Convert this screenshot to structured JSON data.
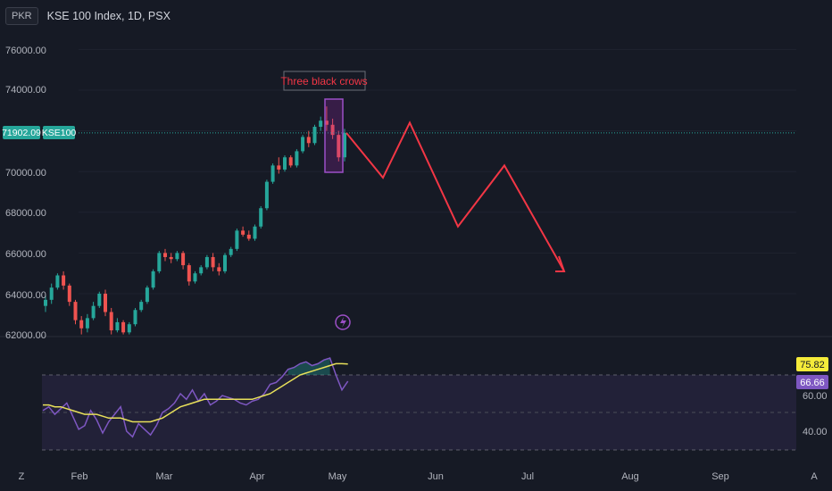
{
  "header": {
    "currency": "PKR",
    "title": "KSE 100 Index, 1D, PSX"
  },
  "price_axis": {
    "ticks": [
      "76000.00",
      "74000.00",
      "70000.00",
      "68000.00",
      "66000.00",
      "64000.00",
      "62000.00"
    ]
  },
  "price_tags": {
    "last_price": "71902.09",
    "symbol": "KSE100"
  },
  "annotation": {
    "text": "Three black crows"
  },
  "rsi_axis": {
    "ticks": [
      "60.00",
      "40.00"
    ],
    "ma_badge": "75.82",
    "rsi_badge": "66.66"
  },
  "time_axis": {
    "labels": [
      "Feb",
      "Mar",
      "Apr",
      "May",
      "Jun",
      "Jul",
      "Aug",
      "Sep"
    ],
    "left_icon": "Z",
    "right_icon": "A"
  },
  "colors": {
    "up": "#26a69a",
    "down": "#ef5350",
    "rsi": "#7e57c2",
    "rsi_ma": "#e8e05a",
    "arrow": "#f23645",
    "bg": "#161a25"
  },
  "chart_data": {
    "type": "candlestick",
    "title": "KSE 100 Index, 1D, PSX",
    "ylim": [
      62000,
      77000
    ],
    "last_price": 71902.09,
    "candles_ohlc_approx": [
      [
        63400,
        63900,
        63100,
        63700
      ],
      [
        63700,
        64500,
        63500,
        64300
      ],
      [
        64300,
        65000,
        64200,
        64900
      ],
      [
        64900,
        65100,
        64200,
        64400
      ],
      [
        64400,
        64500,
        63400,
        63600
      ],
      [
        63600,
        63700,
        62500,
        62700
      ],
      [
        62700,
        62900,
        62000,
        62300
      ],
      [
        62300,
        63000,
        62100,
        62800
      ],
      [
        62800,
        63600,
        62700,
        63400
      ],
      [
        63400,
        64100,
        63300,
        64000
      ],
      [
        64000,
        64200,
        62900,
        63100
      ],
      [
        63100,
        63300,
        62000,
        62200
      ],
      [
        62200,
        62800,
        62100,
        62600
      ],
      [
        62600,
        62700,
        62000,
        62100
      ],
      [
        62100,
        62600,
        62000,
        62500
      ],
      [
        62500,
        63300,
        62400,
        63200
      ],
      [
        63200,
        63700,
        63100,
        63600
      ],
      [
        63600,
        64400,
        63500,
        64300
      ],
      [
        64300,
        65200,
        64200,
        65100
      ],
      [
        65100,
        66100,
        65000,
        66000
      ],
      [
        66000,
        66200,
        65600,
        65800
      ],
      [
        65800,
        66000,
        65500,
        65700
      ],
      [
        65700,
        66100,
        65600,
        66000
      ],
      [
        66000,
        66100,
        65200,
        65400
      ],
      [
        65400,
        65500,
        64400,
        64600
      ],
      [
        64600,
        65100,
        64500,
        65000
      ],
      [
        65000,
        65400,
        64900,
        65300
      ],
      [
        65300,
        65900,
        65200,
        65800
      ],
      [
        65800,
        66000,
        65100,
        65300
      ],
      [
        65300,
        65500,
        64900,
        65100
      ],
      [
        65100,
        66000,
        65000,
        65900
      ],
      [
        65900,
        66300,
        65800,
        66200
      ],
      [
        66200,
        67200,
        66100,
        67100
      ],
      [
        67100,
        67300,
        66800,
        66900
      ],
      [
        66900,
        67100,
        66600,
        66700
      ],
      [
        66700,
        67400,
        66600,
        67300
      ],
      [
        67300,
        68300,
        67200,
        68200
      ],
      [
        68200,
        69600,
        68100,
        69500
      ],
      [
        69500,
        70400,
        69400,
        70300
      ],
      [
        70300,
        70700,
        69900,
        70100
      ],
      [
        70100,
        70800,
        70000,
        70700
      ],
      [
        70700,
        70800,
        70200,
        70300
      ],
      [
        70300,
        71100,
        70200,
        71000
      ],
      [
        71000,
        71800,
        70900,
        71700
      ],
      [
        71700,
        72000,
        71200,
        71400
      ],
      [
        71400,
        72300,
        71300,
        72200
      ],
      [
        72200,
        72700,
        72000,
        72500
      ],
      [
        72500,
        73200,
        72000,
        72300
      ],
      [
        72300,
        72600,
        71600,
        71800
      ],
      [
        71800,
        72000,
        70500,
        70700
      ],
      [
        70700,
        72100,
        70500,
        71902
      ]
    ],
    "projection_path": [
      71902,
      69700,
      72400,
      67300,
      70300,
      65100
    ],
    "rsi": {
      "ylim": [
        30,
        85
      ],
      "levels": [
        70,
        50,
        30
      ],
      "last": 66.66,
      "ma_last": 75.82
    }
  }
}
